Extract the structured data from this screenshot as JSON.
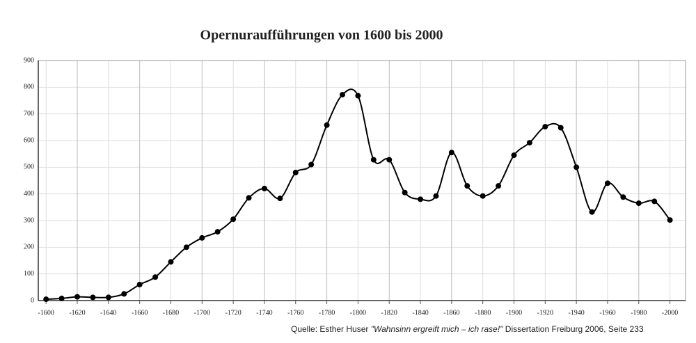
{
  "chart_data": {
    "type": "line",
    "title": "Opernuraufführungen von 1600 bis 2000",
    "x": [
      1600,
      1610,
      1620,
      1630,
      1640,
      1650,
      1660,
      1670,
      1680,
      1690,
      1700,
      1710,
      1720,
      1730,
      1740,
      1750,
      1760,
      1770,
      1780,
      1790,
      1800,
      1810,
      1820,
      1830,
      1840,
      1850,
      1860,
      1870,
      1880,
      1890,
      1900,
      1910,
      1920,
      1930,
      1940,
      1950,
      1960,
      1970,
      1980,
      1990,
      2000
    ],
    "values": [
      5,
      8,
      14,
      12,
      12,
      25,
      60,
      88,
      145,
      200,
      235,
      258,
      305,
      385,
      420,
      383,
      480,
      510,
      658,
      772,
      768,
      528,
      528,
      405,
      380,
      392,
      555,
      430,
      392,
      430,
      545,
      592,
      652,
      648,
      500,
      332,
      440,
      388,
      365,
      372,
      302
    ],
    "color": "#000000",
    "xlim": [
      1595,
      2010
    ],
    "xticks": [
      {
        "value": 1600,
        "label": "-1600"
      },
      {
        "value": 1620,
        "label": "-1620"
      },
      {
        "value": 1640,
        "label": "-1640"
      },
      {
        "value": 1660,
        "label": "-1660"
      },
      {
        "value": 1680,
        "label": "-1680"
      },
      {
        "value": 1700,
        "label": "-1700"
      },
      {
        "value": 1720,
        "label": "-1720"
      },
      {
        "value": 1740,
        "label": "-1740"
      },
      {
        "value": 1760,
        "label": "-1760"
      },
      {
        "value": 1780,
        "label": "-1780"
      },
      {
        "value": 1800,
        "label": "-1800"
      },
      {
        "value": 1820,
        "label": "-1820"
      },
      {
        "value": 1840,
        "label": "-1840"
      },
      {
        "value": 1860,
        "label": "-1860"
      },
      {
        "value": 1880,
        "label": "-1880"
      },
      {
        "value": 1900,
        "label": "-1900"
      },
      {
        "value": 1920,
        "label": "-1920"
      },
      {
        "value": 1940,
        "label": "-1940"
      },
      {
        "value": 1960,
        "label": "-1960"
      },
      {
        "value": 1980,
        "label": "-1980"
      },
      {
        "value": 2000,
        "label": "-2000"
      }
    ],
    "ylim": [
      0,
      900
    ],
    "yticks": [
      0,
      100,
      200,
      300,
      400,
      500,
      600,
      700,
      800,
      900
    ],
    "grid": true,
    "source": {
      "prefix": "Quelle: Esther Huser",
      "title": "\"Wahnsinn ergreift mich – ich rase!\"",
      "suffix": "Dissertation Freiburg 2006, Seite 233"
    }
  }
}
